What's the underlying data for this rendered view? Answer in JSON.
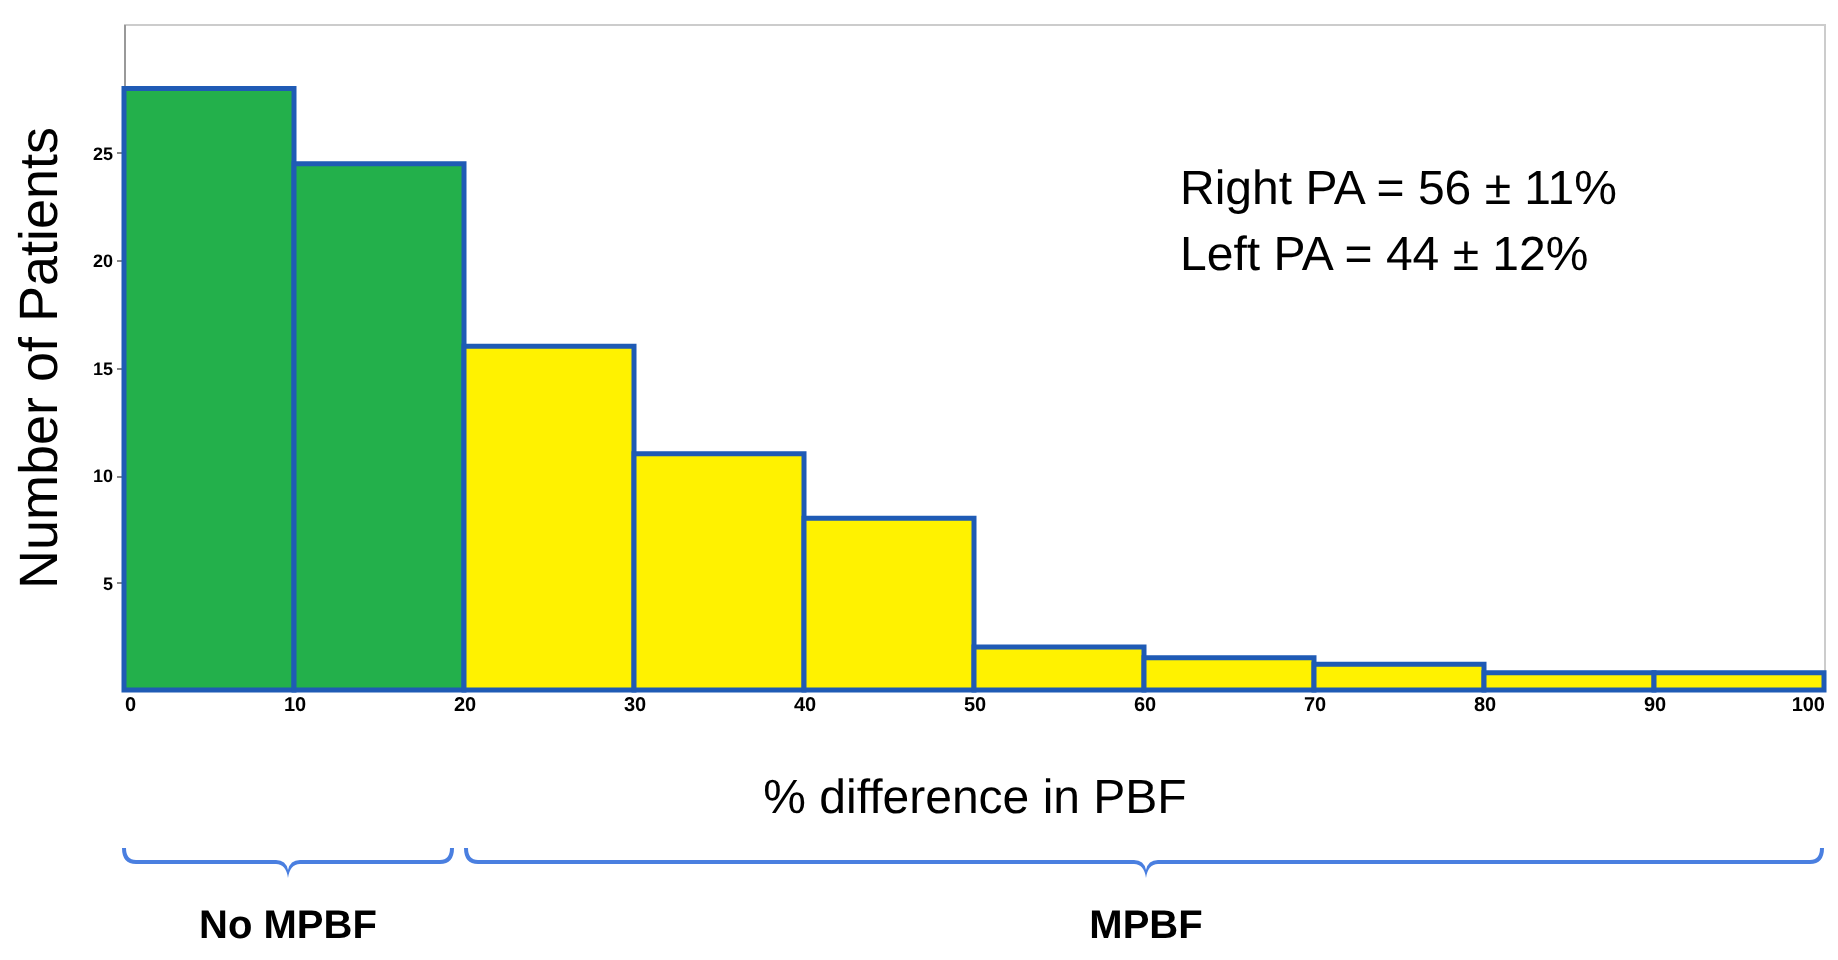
{
  "chart_data": {
    "type": "histogram",
    "bins": [
      0,
      10,
      20,
      30,
      40,
      50,
      60,
      70,
      80,
      90,
      100
    ],
    "values": [
      28,
      24.5,
      16,
      11,
      8,
      2,
      1.5,
      1.2,
      0.8,
      0.8
    ],
    "colors": [
      "#23b04b",
      "#23b04b",
      "#fff200",
      "#fff200",
      "#fff200",
      "#fff200",
      "#fff200",
      "#fff200",
      "#fff200",
      "#fff200"
    ],
    "xlabel": "% difference in PBF",
    "ylabel": "Number of Patients",
    "xlim": [
      0,
      100
    ],
    "xticks": [
      0,
      10,
      20,
      30,
      40,
      50,
      60,
      70,
      80,
      90,
      100
    ],
    "ylim": [
      0,
      31
    ],
    "yticks": [
      5,
      10,
      15,
      20,
      25
    ],
    "annotations": [
      "Right PA = 56 ± 11%",
      "Left PA = 44 ± 12%",
      "No MPBF",
      "MPBF"
    ]
  }
}
